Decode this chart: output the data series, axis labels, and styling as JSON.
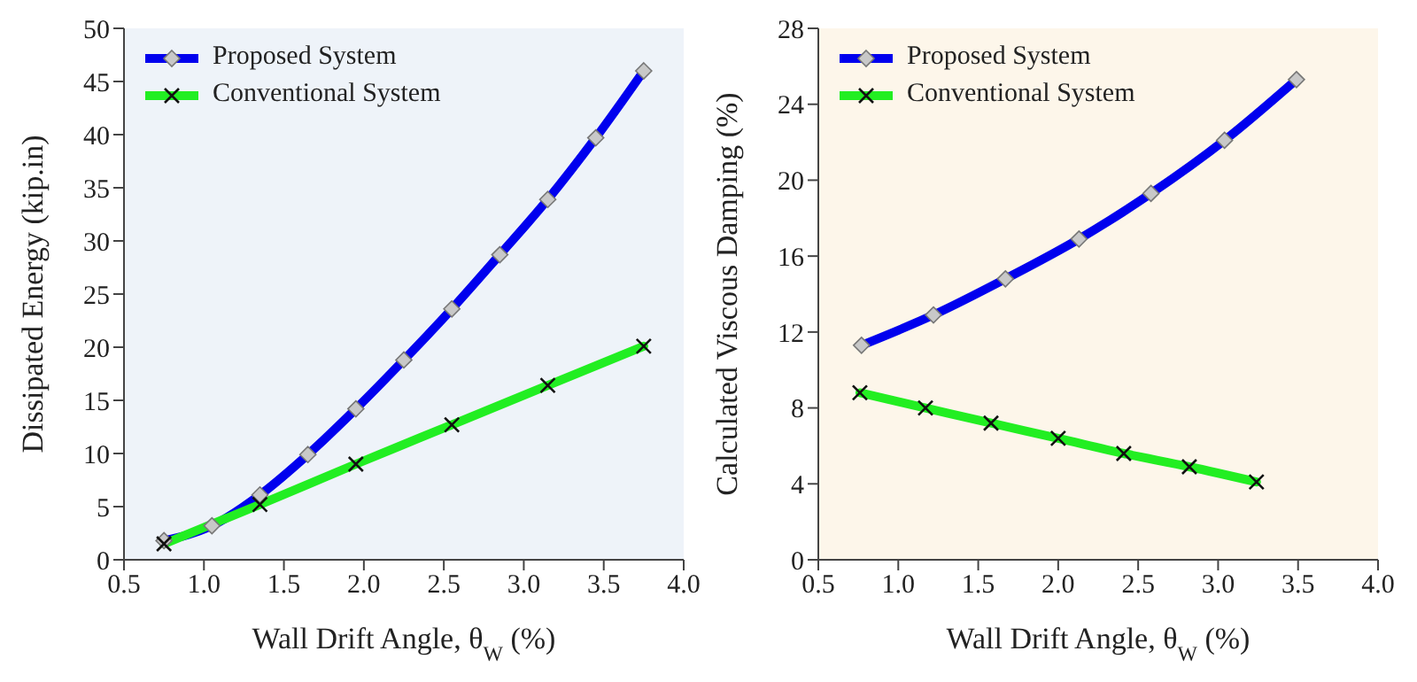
{
  "chart_data": [
    {
      "type": "line",
      "xlabel": "Wall Drift Angle, θ$_{W}$ (%)",
      "ylabel": "Dissipated Energy (kip.in)",
      "xlim": [
        0.5,
        4.0
      ],
      "xticks": [
        0.5,
        {
          "value": 1,
          "label": "1.0"
        },
        1.5,
        {
          "value": 2,
          "label": "2.0"
        },
        2.5,
        {
          "value": 3,
          "label": "3.0"
        },
        3.5,
        {
          "value": 4,
          "label": "4.0"
        }
      ],
      "ylim": [
        0,
        50
      ],
      "yticks": [
        0,
        5,
        10,
        15,
        20,
        25,
        30,
        35,
        40,
        45,
        50
      ],
      "grid": false,
      "legend": "top left",
      "series": [
        {
          "name": "Proposed System",
          "color": "#0000ee",
          "marker": "diamond",
          "x": [
            0.75,
            1.05,
            1.35,
            1.65,
            1.95,
            2.25,
            2.55,
            2.85,
            3.15,
            3.45,
            3.75
          ],
          "values": [
            1.8,
            3.2,
            6.1,
            9.9,
            14.2,
            18.8,
            23.6,
            28.7,
            33.9,
            39.7,
            46.0
          ]
        },
        {
          "name": "Conventional System",
          "color": "#22ee22",
          "marker": "cross",
          "x": [
            0.75,
            1.35,
            1.95,
            2.55,
            3.15,
            3.75
          ],
          "values": [
            1.5,
            5.2,
            9.0,
            12.7,
            16.4,
            20.1
          ]
        }
      ]
    },
    {
      "type": "line",
      "xlabel": "Wall Drift Angle, θ$_{W}$ (%)",
      "ylabel": "Calculated Viscous Damping (%)",
      "xlim": [
        0.5,
        4.0
      ],
      "xticks": [
        0.5,
        {
          "value": 1,
          "label": "1.0"
        },
        1.5,
        {
          "value": 2,
          "label": "2.0"
        },
        2.5,
        {
          "value": 3,
          "label": "3.0"
        },
        3.5,
        {
          "value": 4,
          "label": "4.0"
        }
      ],
      "ylim": [
        0,
        28
      ],
      "yticks": [
        0,
        4,
        8,
        12,
        16,
        20,
        24,
        28
      ],
      "grid": false,
      "legend": "top left",
      "series": [
        {
          "name": "Proposed System",
          "color": "#0000ee",
          "marker": "diamond",
          "x": [
            0.77,
            1.22,
            1.67,
            2.13,
            2.58,
            3.04,
            3.49
          ],
          "values": [
            11.3,
            12.9,
            14.8,
            16.9,
            19.3,
            22.1,
            25.3
          ]
        },
        {
          "name": "Conventional System",
          "color": "#22ee22",
          "marker": "cross",
          "x": [
            0.76,
            1.17,
            1.58,
            2.0,
            2.41,
            2.82,
            3.24
          ],
          "values": [
            8.8,
            8.0,
            7.2,
            6.4,
            5.6,
            4.9,
            4.1
          ]
        }
      ]
    }
  ]
}
